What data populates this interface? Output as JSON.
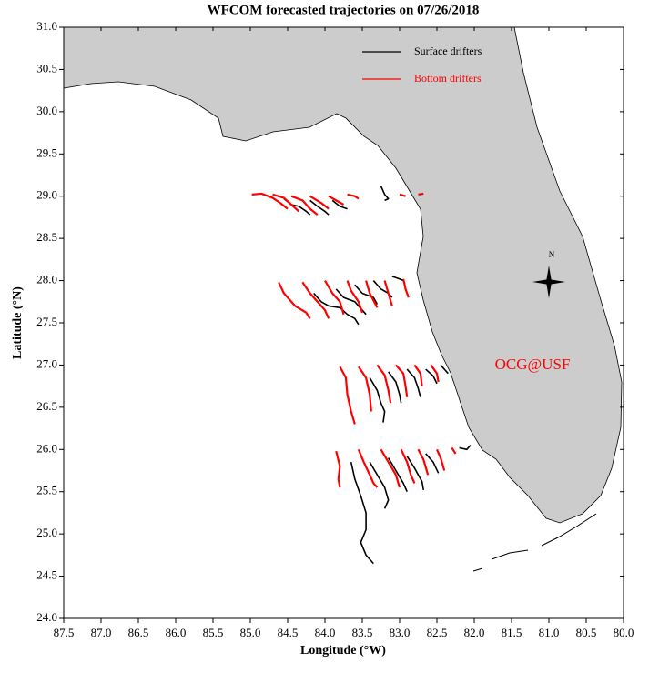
{
  "chart_data": {
    "type": "trajectory",
    "title": "WFCOM forecasted trajectories on 07/26/2018",
    "xlabel": "Longitude (°W)",
    "ylabel": "Latitude (°N)",
    "annotation": "OCG@USF",
    "compass_label": "N",
    "legend": "upper right",
    "xlim": [
      87.5,
      80.0
    ],
    "ylim": [
      24.0,
      31.0
    ],
    "xticks": [
      87.5,
      {
        "value": 87,
        "label": "87.0"
      },
      86.5,
      {
        "value": 86,
        "label": "86.0"
      },
      85.5,
      {
        "value": 85,
        "label": "85.0"
      },
      84.5,
      {
        "value": 84,
        "label": "84.0"
      },
      83.5,
      {
        "value": 83,
        "label": "83.0"
      },
      82.5,
      {
        "value": 82,
        "label": "82.0"
      },
      81.5,
      {
        "value": 81,
        "label": "81.0"
      },
      80.5,
      {
        "value": 80,
        "label": "80.0"
      }
    ],
    "yticks": [
      {
        "value": 24,
        "label": "24.0"
      },
      24.5,
      {
        "value": 25,
        "label": "25.0"
      },
      25.5,
      {
        "value": 26,
        "label": "26.0"
      },
      26.5,
      {
        "value": 27,
        "label": "27.0"
      },
      27.5,
      {
        "value": 28,
        "label": "28.0"
      },
      28.5,
      {
        "value": 29,
        "label": "29.0"
      },
      29.5,
      {
        "value": 30,
        "label": "30.0"
      },
      30.5,
      {
        "value": 31,
        "label": "31.0"
      }
    ],
    "series": [
      {
        "name": "Surface drifters",
        "color": "#000000",
        "tracks": [
          {
            "x": [
              84.55,
              84.45,
              84.35,
              84.25,
              84.2
            ],
            "y": [
              28.97,
              28.9,
              28.88,
              28.82,
              28.78
            ]
          },
          {
            "x": [
              84.2,
              84.1,
              84.0,
              83.95
            ],
            "y": [
              28.95,
              28.88,
              28.82,
              28.78
            ]
          },
          {
            "x": [
              83.9,
              83.8,
              83.7
            ],
            "y": [
              28.95,
              28.88,
              28.85
            ]
          },
          {
            "x": [
              83.25,
              83.2,
              83.15,
              83.2
            ],
            "y": [
              29.12,
              29.02,
              28.97,
              28.95
            ]
          },
          {
            "x": [
              84.15,
              84.05,
              83.95,
              83.8,
              83.7,
              83.6,
              83.55
            ],
            "y": [
              27.85,
              27.75,
              27.7,
              27.68,
              27.6,
              27.55,
              27.48
            ]
          },
          {
            "x": [
              83.85,
              83.75,
              83.6,
              83.5,
              83.45
            ],
            "y": [
              27.9,
              27.8,
              27.75,
              27.65,
              27.6
            ]
          },
          {
            "x": [
              83.6,
              83.5,
              83.35,
              83.3
            ],
            "y": [
              27.95,
              27.85,
              27.8,
              27.72
            ]
          },
          {
            "x": [
              83.35,
              83.25,
              83.15,
              83.1
            ],
            "y": [
              28.0,
              27.9,
              27.85,
              27.8
            ]
          },
          {
            "x": [
              83.1,
              83.0,
              82.95
            ],
            "y": [
              28.05,
              28.02,
              28.0
            ]
          },
          {
            "x": [
              83.4,
              83.3,
              83.25,
              83.2,
              83.22
            ],
            "y": [
              26.85,
              26.7,
              26.55,
              26.45,
              26.32
            ]
          },
          {
            "x": [
              83.15,
              83.05,
              83.0,
              82.98
            ],
            "y": [
              26.92,
              26.8,
              26.65,
              26.55
            ]
          },
          {
            "x": [
              82.9,
              82.8,
              82.75,
              82.72
            ],
            "y": [
              26.95,
              26.85,
              26.72,
              26.62
            ]
          },
          {
            "x": [
              82.65,
              82.55,
              82.5
            ],
            "y": [
              26.95,
              26.87,
              26.78
            ]
          },
          {
            "x": [
              82.45,
              82.4,
              82.35
            ],
            "y": [
              27.0,
              26.95,
              26.9
            ]
          },
          {
            "x": [
              83.65,
              83.6,
              83.52,
              83.45,
              83.45,
              83.52,
              83.45,
              83.35
            ],
            "y": [
              25.85,
              25.65,
              25.45,
              25.25,
              25.05,
              24.9,
              24.75,
              24.65
            ]
          },
          {
            "x": [
              83.4,
              83.3,
              83.2,
              83.15,
              83.2
            ],
            "y": [
              25.85,
              25.7,
              25.55,
              25.4,
              25.3
            ]
          },
          {
            "x": [
              83.15,
              83.05,
              82.95,
              82.9
            ],
            "y": [
              25.9,
              25.75,
              25.6,
              25.5
            ]
          },
          {
            "x": [
              82.9,
              82.8,
              82.7,
              82.68
            ],
            "y": [
              25.92,
              25.78,
              25.62,
              25.52
            ]
          },
          {
            "x": [
              82.65,
              82.55,
              82.48
            ],
            "y": [
              25.95,
              25.85,
              25.72
            ]
          },
          {
            "x": [
              82.2,
              82.1,
              82.05
            ],
            "y": [
              26.02,
              26.0,
              26.05
            ]
          }
        ]
      },
      {
        "name": "Bottom drifters",
        "color": "#ff0000",
        "tracks": [
          {
            "x": [
              84.98,
              84.85,
              84.7,
              84.6,
              84.5
            ],
            "y": [
              29.02,
              29.03,
              28.98,
              28.92,
              28.85
            ]
          },
          {
            "x": [
              84.7,
              84.55,
              84.45,
              84.35
            ],
            "y": [
              29.02,
              28.98,
              28.9,
              28.82
            ]
          },
          {
            "x": [
              84.45,
              84.3,
              84.2,
              84.1
            ],
            "y": [
              29.0,
              28.95,
              28.85,
              28.78
            ]
          },
          {
            "x": [
              84.2,
              84.05,
              83.95
            ],
            "y": [
              29.0,
              28.92,
              28.85
            ]
          },
          {
            "x": [
              83.95,
              83.85,
              83.75
            ],
            "y": [
              29.0,
              28.95,
              28.9
            ]
          },
          {
            "x": [
              83.7,
              83.6,
              83.55
            ],
            "y": [
              29.02,
              29.0,
              28.97
            ]
          },
          {
            "x": [
              83.0,
              82.92
            ],
            "y": [
              29.02,
              29.0
            ]
          },
          {
            "x": [
              82.75,
              82.68
            ],
            "y": [
              29.02,
              29.03
            ]
          },
          {
            "x": [
              84.62,
              84.55,
              84.45,
              84.4,
              84.25,
              84.2
            ],
            "y": [
              27.98,
              27.85,
              27.75,
              27.7,
              27.62,
              27.55
            ]
          },
          {
            "x": [
              84.3,
              84.2,
              84.1,
              84.0,
              83.95
            ],
            "y": [
              27.98,
              27.85,
              27.75,
              27.65,
              27.55
            ]
          },
          {
            "x": [
              84.0,
              83.9,
              83.8,
              83.75
            ],
            "y": [
              28.0,
              27.85,
              27.75,
              27.6
            ]
          },
          {
            "x": [
              83.7,
              83.65,
              83.55,
              83.5
            ],
            "y": [
              28.0,
              27.88,
              27.75,
              27.62
            ]
          },
          {
            "x": [
              83.45,
              83.4,
              83.3
            ],
            "y": [
              28.0,
              27.85,
              27.68
            ]
          },
          {
            "x": [
              83.2,
              83.15,
              83.1
            ],
            "y": [
              28.0,
              27.85,
              27.7
            ]
          },
          {
            "x": [
              82.95,
              82.92,
              82.88
            ],
            "y": [
              28.02,
              27.9,
              27.8
            ]
          },
          {
            "x": [
              83.8,
              83.72,
              83.7,
              83.65,
              83.6
            ],
            "y": [
              26.98,
              26.85,
              26.65,
              26.45,
              26.3
            ]
          },
          {
            "x": [
              83.55,
              83.45,
              83.4,
              83.38
            ],
            "y": [
              26.98,
              26.85,
              26.65,
              26.45
            ]
          },
          {
            "x": [
              83.3,
              83.2,
              83.15,
              83.12
            ],
            "y": [
              27.0,
              26.88,
              26.7,
              26.55
            ]
          },
          {
            "x": [
              83.05,
              82.95,
              82.92,
              82.9
            ],
            "y": [
              27.0,
              26.9,
              26.75,
              26.62
            ]
          },
          {
            "x": [
              82.8,
              82.72,
              82.7
            ],
            "y": [
              27.0,
              26.9,
              26.75
            ]
          },
          {
            "x": [
              82.58,
              82.5,
              82.48
            ],
            "y": [
              27.0,
              26.9,
              26.8
            ]
          },
          {
            "x": [
              83.85,
              83.8,
              83.82,
              83.8
            ],
            "y": [
              25.98,
              25.8,
              25.65,
              25.55
            ]
          },
          {
            "x": [
              83.55,
              83.48,
              83.4,
              83.35,
              83.3
            ],
            "y": [
              26.0,
              25.85,
              25.7,
              25.6,
              25.55
            ]
          },
          {
            "x": [
              83.25,
              83.15,
              83.05,
              83.0
            ],
            "y": [
              26.0,
              25.85,
              25.7,
              25.55
            ]
          },
          {
            "x": [
              82.98,
              82.9,
              82.85,
              82.8
            ],
            "y": [
              26.0,
              25.85,
              25.7,
              25.6
            ]
          },
          {
            "x": [
              82.75,
              82.68,
              82.62
            ],
            "y": [
              26.0,
              25.88,
              25.7
            ]
          },
          {
            "x": [
              82.5,
              82.45,
              82.4
            ],
            "y": [
              26.0,
              25.9,
              25.75
            ]
          },
          {
            "x": [
              82.3,
              82.25
            ],
            "y": [
              26.02,
              25.95
            ]
          }
        ]
      }
    ]
  }
}
